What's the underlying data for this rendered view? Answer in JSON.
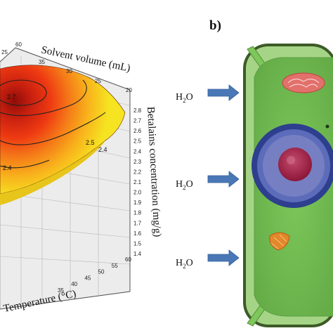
{
  "panel_b": {
    "label": "b)",
    "water_labels": [
      "H",
      "H",
      "H"
    ],
    "water_subscript": "2",
    "water_suffix": "O"
  },
  "panel_a": {
    "x_axis_label": "Solvent volume (mL)",
    "y_axis_label": "Temperature (°C)",
    "z_axis_label": "Betalains concentration (mg/g)",
    "top_ticks": [
      "25",
      "30",
      "35",
      "60"
    ],
    "solvent_ticks": [
      "35",
      "30",
      "25",
      "20"
    ],
    "z_ticks": [
      "2.8",
      "2.7",
      "2.6",
      "2.5",
      "2.4",
      "2.3",
      "2.2",
      "2.1",
      "2.0",
      "1.9",
      "1.8",
      "1.7",
      "1.6",
      "1.5",
      "1.4"
    ],
    "temp_ticks": [
      "60",
      "55",
      "50",
      "45",
      "40",
      "35"
    ],
    "contour_labels": [
      "2.7",
      "2.5",
      "2.4",
      "2.4"
    ]
  },
  "chart_data": {
    "type": "surface",
    "xlabel": "Solvent volume (mL)",
    "ylabel": "Temperature (°C)",
    "zlabel": "Betalains concentration (mg/g)",
    "x_ticks": [
      35,
      30,
      25,
      20
    ],
    "y_ticks": [
      35,
      40,
      45,
      50,
      55,
      60
    ],
    "zlim": [
      1.4,
      2.8
    ],
    "z_ticks": [
      1.4,
      1.5,
      1.6,
      1.7,
      1.8,
      1.9,
      2.0,
      2.1,
      2.2,
      2.3,
      2.4,
      2.5,
      2.6,
      2.7,
      2.8
    ],
    "contour_levels": [
      2.4,
      2.5,
      2.7
    ],
    "colors": {
      "low": "#f5e020",
      "mid": "#f26b16",
      "high": "#9c0f0a"
    }
  },
  "colors": {
    "cell_green": "#74bf52",
    "cell_wall": "#3c5a26",
    "nucleus_ring": "#3e55a6",
    "nucleus_core": "#a2244b",
    "arrow_blue": "#4a78b6"
  }
}
